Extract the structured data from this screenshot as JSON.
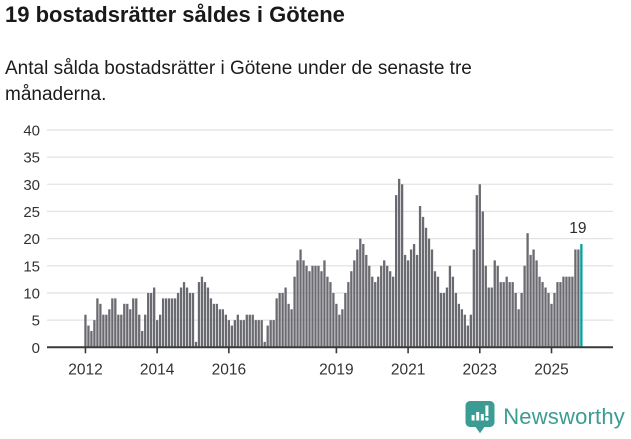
{
  "header": {
    "title": "19 bostadsrätter såldes i Götene",
    "subtitle": "Antal sålda bostadsrätter i Götene under de senaste tre månaderna."
  },
  "chart_data": {
    "type": "bar",
    "title": "19 bostadsrätter såldes i Götene",
    "xlabel": "",
    "ylabel": "",
    "start_month": "2012-01",
    "end_month": "2025-11",
    "frequency": "monthly",
    "ylim": [
      0,
      40
    ],
    "y_ticks": [
      0,
      5,
      10,
      15,
      20,
      25,
      30,
      35,
      40
    ],
    "x_tick_years": [
      2012,
      2014,
      2016,
      2019,
      2021,
      2023,
      2025
    ],
    "grid": true,
    "bar_color": "#6a6a71",
    "highlight_color": "#00a2a0",
    "annotation": {
      "label": "19",
      "value": 19,
      "month": "2025-11"
    },
    "values": [
      6,
      4,
      3,
      5,
      9,
      8,
      6,
      6,
      7,
      9,
      9,
      6,
      6,
      8,
      8,
      7,
      9,
      9,
      6,
      3,
      6,
      10,
      10,
      11,
      5,
      6,
      9,
      9,
      9,
      9,
      9,
      10,
      11,
      12,
      11,
      10,
      10,
      1,
      12,
      13,
      12,
      11,
      9,
      8,
      8,
      7,
      7,
      6,
      5,
      4,
      5,
      6,
      5,
      5,
      6,
      6,
      6,
      5,
      5,
      5,
      1,
      4,
      5,
      5,
      9,
      10,
      10,
      11,
      8,
      7,
      13,
      16,
      18,
      16,
      15,
      14,
      15,
      15,
      15,
      14,
      16,
      13,
      12,
      10,
      8,
      6,
      7,
      10,
      12,
      14,
      16,
      18,
      20,
      19,
      17,
      15,
      13,
      12,
      13,
      15,
      16,
      15,
      14,
      13,
      28,
      31,
      30,
      17,
      16,
      18,
      19,
      17,
      26,
      24,
      22,
      20,
      18,
      14,
      13,
      10,
      10,
      11,
      15,
      13,
      10,
      8,
      7,
      6,
      4,
      6,
      18,
      28,
      30,
      25,
      15,
      11,
      11,
      16,
      15,
      12,
      12,
      13,
      12,
      12,
      10,
      7,
      10,
      15,
      21,
      17,
      18,
      16,
      13,
      12,
      11,
      10,
      8,
      10,
      12,
      12,
      13,
      13,
      13,
      13,
      18,
      18,
      19
    ]
  },
  "footer": {
    "brand": "Newsworthy",
    "logo_icon": "bar-chart-speech-bubble-icon",
    "brand_color": "#3b9c93"
  },
  "colors": {
    "bar_gray": "#6a6a71",
    "highlight_teal": "#00a2a0",
    "gridline": "#e4e4e6",
    "axis": "#3a3a3a",
    "text": "#333333"
  }
}
